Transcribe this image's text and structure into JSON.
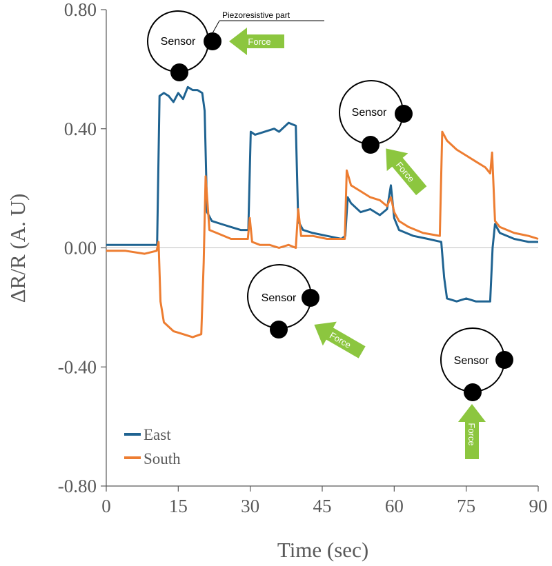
{
  "chart_data": {
    "type": "line",
    "title": "",
    "xlabel": "Time (sec)",
    "ylabel": "ΔR/R (A. U)",
    "xlim": [
      0,
      90
    ],
    "ylim": [
      -0.8,
      0.8
    ],
    "xticks": [
      0,
      15,
      30,
      45,
      60,
      75,
      90
    ],
    "xtick_labels": [
      "0",
      "15",
      "30",
      "45",
      "60",
      "75",
      "90"
    ],
    "yticks": [
      0.8,
      0.4,
      0.0,
      -0.4,
      -0.8
    ],
    "ytick_labels": [
      "0.80",
      "0.40",
      "0.00",
      "-0.40",
      "-0.80"
    ],
    "grid": false,
    "legend": "bottom-left",
    "series": [
      {
        "name": "East",
        "color": "#1f6391",
        "points": [
          [
            0,
            0.01
          ],
          [
            4,
            0.01
          ],
          [
            8,
            0.01
          ],
          [
            10.6,
            0.01
          ],
          [
            11.1,
            0.51
          ],
          [
            12,
            0.52
          ],
          [
            13,
            0.51
          ],
          [
            14,
            0.49
          ],
          [
            15,
            0.52
          ],
          [
            16,
            0.5
          ],
          [
            17,
            0.54
          ],
          [
            18,
            0.53
          ],
          [
            19,
            0.53
          ],
          [
            20,
            0.52
          ],
          [
            20.5,
            0.46
          ],
          [
            21,
            0.12
          ],
          [
            22,
            0.09
          ],
          [
            24,
            0.08
          ],
          [
            26,
            0.07
          ],
          [
            28,
            0.06
          ],
          [
            29.6,
            0.06
          ],
          [
            30.1,
            0.39
          ],
          [
            31,
            0.38
          ],
          [
            33,
            0.39
          ],
          [
            35,
            0.4
          ],
          [
            36,
            0.39
          ],
          [
            38,
            0.42
          ],
          [
            39.5,
            0.41
          ],
          [
            40,
            0.09
          ],
          [
            41,
            0.06
          ],
          [
            43,
            0.05
          ],
          [
            46,
            0.04
          ],
          [
            49,
            0.03
          ],
          [
            49.8,
            0.04
          ],
          [
            50.3,
            0.17
          ],
          [
            51,
            0.15
          ],
          [
            53,
            0.12
          ],
          [
            55,
            0.13
          ],
          [
            57,
            0.11
          ],
          [
            58.5,
            0.13
          ],
          [
            59.3,
            0.21
          ],
          [
            60,
            0.1
          ],
          [
            61,
            0.06
          ],
          [
            64,
            0.04
          ],
          [
            67,
            0.03
          ],
          [
            69.8,
            0.02
          ],
          [
            70.4,
            -0.1
          ],
          [
            71,
            -0.17
          ],
          [
            73,
            -0.18
          ],
          [
            75,
            -0.17
          ],
          [
            77,
            -0.18
          ],
          [
            79,
            -0.18
          ],
          [
            80,
            -0.18
          ],
          [
            80.5,
            0.0
          ],
          [
            81,
            0.08
          ],
          [
            82,
            0.05
          ],
          [
            85,
            0.03
          ],
          [
            88,
            0.02
          ],
          [
            90,
            0.02
          ]
        ]
      },
      {
        "name": "South",
        "color": "#ed7d31",
        "points": [
          [
            0,
            -0.01
          ],
          [
            4,
            -0.01
          ],
          [
            8,
            -0.02
          ],
          [
            10.5,
            -0.01
          ],
          [
            10.9,
            0.02
          ],
          [
            11.3,
            -0.18
          ],
          [
            12,
            -0.25
          ],
          [
            14,
            -0.28
          ],
          [
            16,
            -0.29
          ],
          [
            18,
            -0.3
          ],
          [
            19.8,
            -0.29
          ],
          [
            20.3,
            -0.05
          ],
          [
            20.7,
            0.24
          ],
          [
            21.5,
            0.06
          ],
          [
            23,
            0.05
          ],
          [
            26,
            0.03
          ],
          [
            29.5,
            0.03
          ],
          [
            29.9,
            0.1
          ],
          [
            30.4,
            0.02
          ],
          [
            32,
            0.01
          ],
          [
            34,
            0.01
          ],
          [
            36,
            0.0
          ],
          [
            38,
            0.01
          ],
          [
            39.5,
            0.0
          ],
          [
            40,
            0.13
          ],
          [
            40.6,
            0.04
          ],
          [
            43,
            0.04
          ],
          [
            46,
            0.03
          ],
          [
            49.7,
            0.03
          ],
          [
            50.1,
            0.26
          ],
          [
            51,
            0.21
          ],
          [
            53,
            0.19
          ],
          [
            55,
            0.17
          ],
          [
            57,
            0.16
          ],
          [
            58.5,
            0.14
          ],
          [
            59.3,
            0.17
          ],
          [
            60,
            0.12
          ],
          [
            61,
            0.09
          ],
          [
            63,
            0.07
          ],
          [
            66,
            0.05
          ],
          [
            69.5,
            0.04
          ],
          [
            70,
            0.39
          ],
          [
            71,
            0.36
          ],
          [
            73,
            0.33
          ],
          [
            75,
            0.31
          ],
          [
            77,
            0.29
          ],
          [
            79,
            0.27
          ],
          [
            80,
            0.25
          ],
          [
            80.4,
            0.32
          ],
          [
            81,
            0.09
          ],
          [
            82,
            0.07
          ],
          [
            85,
            0.05
          ],
          [
            88,
            0.04
          ],
          [
            90,
            0.03
          ]
        ]
      }
    ],
    "annotations": {
      "sensor_label": "Sensor",
      "force_label": "Force",
      "callout": "Piezoresistive part"
    }
  }
}
